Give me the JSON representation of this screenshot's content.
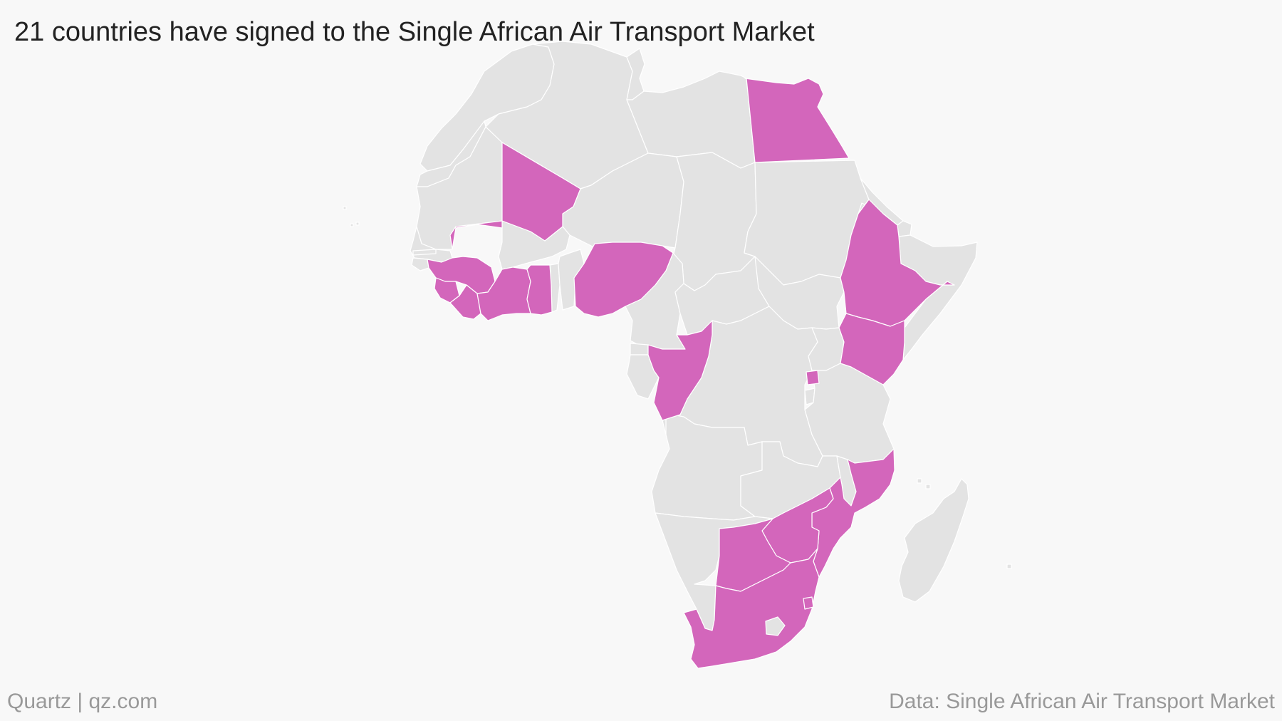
{
  "title": "21 countries have signed to the Single African Air Transport Market",
  "footer": {
    "credit": "Quartz | qz.com",
    "source": "Data: Single African Air Transport Market"
  },
  "map": {
    "type": "choropleth",
    "region": "Africa",
    "colors": {
      "signed": "#d366bb",
      "not_signed": "#e3e3e3",
      "background": "#f8f8f8",
      "border": "#ffffff"
    },
    "signed_countries_count": 21
  }
}
